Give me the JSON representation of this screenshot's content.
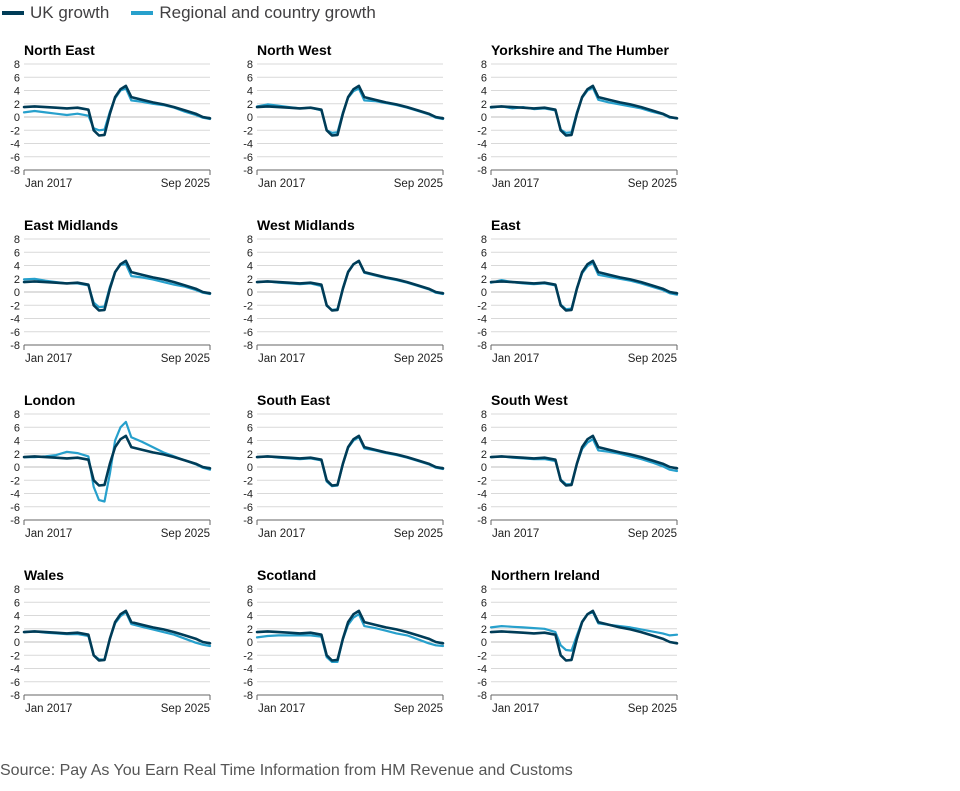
{
  "legend": {
    "uk_label": "UK growth",
    "regional_label": "Regional and country growth"
  },
  "source": "Source: Pay As You Earn Real Time Information from HM Revenue and Customs",
  "colors": {
    "uk": "#003c57",
    "regional": "#27a0cc",
    "grid": "#d9d9d9",
    "axis": "#222222"
  },
  "chart_data": {
    "type": "line",
    "x_start_label": "Jan 2017",
    "x_end_label": "Sep 2025",
    "ylim": [
      -8,
      8
    ],
    "yticks": [
      8,
      6,
      4,
      2,
      0,
      -2,
      -4,
      -6,
      -8
    ],
    "x_dates": [
      "2017-01",
      "2017-07",
      "2018-01",
      "2018-07",
      "2019-01",
      "2019-07",
      "2020-01",
      "2020-04",
      "2020-07",
      "2020-10",
      "2021-01",
      "2021-04",
      "2021-07",
      "2021-10",
      "2022-01",
      "2022-07",
      "2023-01",
      "2023-07",
      "2024-01",
      "2024-07",
      "2025-01",
      "2025-05",
      "2025-09"
    ],
    "uk": [
      1.5,
      1.6,
      1.5,
      1.4,
      1.3,
      1.4,
      1.1,
      -2.0,
      -2.8,
      -2.7,
      0.5,
      3.0,
      4.2,
      4.7,
      3.0,
      2.6,
      2.2,
      1.9,
      1.5,
      1.0,
      0.5,
      0.0,
      -0.2
    ],
    "panels": [
      {
        "title": "North East",
        "regional": [
          0.7,
          0.9,
          0.7,
          0.5,
          0.3,
          0.5,
          0.2,
          -1.7,
          -2.0,
          -1.9,
          0.8,
          2.8,
          4.0,
          4.3,
          2.5,
          2.3,
          2.0,
          1.8,
          1.4,
          0.8,
          0.3,
          -0.1,
          -0.3
        ]
      },
      {
        "title": "North West",
        "regional": [
          1.6,
          1.9,
          1.7,
          1.5,
          1.3,
          1.4,
          1.0,
          -2.0,
          -2.4,
          -2.3,
          0.7,
          2.9,
          3.9,
          4.3,
          2.5,
          2.4,
          2.1,
          1.8,
          1.4,
          0.9,
          0.4,
          -0.1,
          -0.3
        ]
      },
      {
        "title": "Yorkshire and The Humber",
        "regional": [
          1.4,
          1.6,
          1.3,
          1.5,
          1.2,
          1.3,
          1.0,
          -1.9,
          -2.4,
          -2.3,
          0.7,
          2.9,
          4.0,
          4.4,
          2.6,
          2.2,
          1.9,
          1.6,
          1.3,
          0.8,
          0.4,
          -0.1,
          -0.2
        ]
      },
      {
        "title": "East Midlands",
        "regional": [
          1.9,
          2.0,
          1.7,
          1.5,
          1.3,
          1.3,
          1.0,
          -1.6,
          -2.3,
          -2.2,
          0.8,
          3.0,
          4.1,
          4.2,
          2.4,
          2.2,
          1.9,
          1.5,
          1.1,
          0.8,
          0.3,
          -0.1,
          -0.3
        ]
      },
      {
        "title": "West Midlands",
        "regional": [
          1.5,
          1.6,
          1.4,
          1.3,
          1.2,
          1.3,
          0.9,
          -2.1,
          -2.7,
          -2.6,
          0.6,
          3.1,
          4.2,
          4.6,
          2.9,
          2.5,
          2.1,
          1.8,
          1.4,
          0.9,
          0.4,
          -0.1,
          -0.3
        ]
      },
      {
        "title": "East",
        "regional": [
          1.4,
          1.8,
          1.5,
          1.3,
          1.2,
          1.3,
          1.0,
          -1.9,
          -2.6,
          -2.5,
          0.6,
          2.8,
          3.9,
          4.4,
          2.6,
          2.3,
          2.0,
          1.7,
          1.3,
          0.8,
          0.3,
          -0.2,
          -0.4
        ]
      },
      {
        "title": "London",
        "regional": [
          1.5,
          1.5,
          1.6,
          1.8,
          2.3,
          2.1,
          1.6,
          -3.0,
          -5.0,
          -5.2,
          -1.0,
          4.0,
          6.0,
          6.8,
          4.5,
          3.8,
          3.0,
          2.2,
          1.6,
          1.0,
          0.4,
          -0.1,
          -0.4
        ]
      },
      {
        "title": "South East",
        "regional": [
          1.5,
          1.6,
          1.4,
          1.3,
          1.2,
          1.3,
          1.0,
          -2.2,
          -2.9,
          -2.8,
          0.4,
          2.9,
          4.0,
          4.5,
          2.8,
          2.5,
          2.1,
          1.8,
          1.4,
          0.9,
          0.4,
          -0.1,
          -0.3
        ]
      },
      {
        "title": "South West",
        "regional": [
          1.5,
          1.6,
          1.4,
          1.3,
          1.2,
          1.2,
          0.9,
          -1.9,
          -2.6,
          -2.6,
          0.5,
          2.7,
          3.7,
          4.2,
          2.5,
          2.3,
          2.0,
          1.6,
          1.2,
          0.7,
          0.1,
          -0.4,
          -0.6
        ]
      },
      {
        "title": "Wales",
        "regional": [
          1.5,
          1.6,
          1.4,
          1.3,
          1.2,
          1.2,
          0.9,
          -2.0,
          -2.6,
          -2.7,
          0.5,
          2.8,
          3.9,
          4.5,
          2.7,
          2.3,
          1.9,
          1.5,
          1.1,
          0.5,
          -0.1,
          -0.4,
          -0.6
        ]
      },
      {
        "title": "Scotland",
        "regional": [
          0.7,
          0.9,
          1.0,
          1.0,
          1.0,
          1.0,
          0.8,
          -2.3,
          -3.0,
          -3.0,
          0.4,
          2.6,
          3.7,
          4.2,
          2.4,
          2.1,
          1.7,
          1.3,
          1.0,
          0.4,
          -0.2,
          -0.5,
          -0.6
        ]
      },
      {
        "title": "Northern Ireland",
        "regional": [
          2.2,
          2.4,
          2.3,
          2.2,
          2.1,
          2.0,
          1.5,
          -0.5,
          -1.2,
          -1.3,
          1.0,
          3.1,
          4.2,
          4.5,
          2.8,
          2.6,
          2.4,
          2.2,
          1.9,
          1.6,
          1.3,
          1.0,
          1.1
        ]
      }
    ]
  }
}
